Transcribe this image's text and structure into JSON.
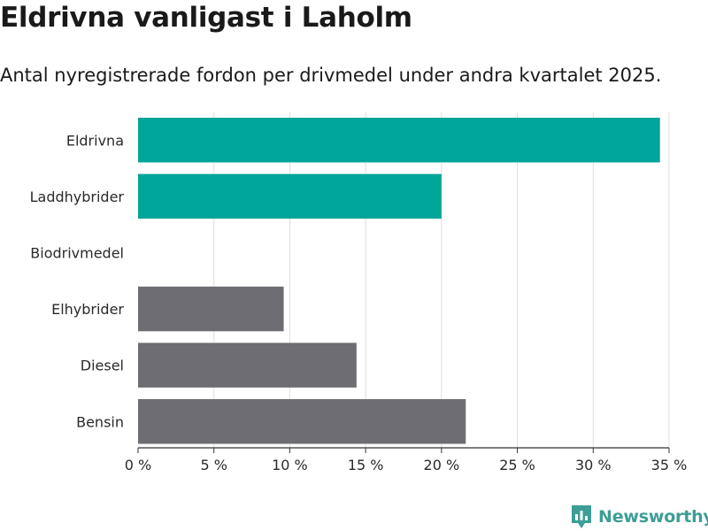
{
  "title": "Eldrivna vanligast i Laholm",
  "subtitle": "Antal nyregistrerade fordon per drivmedel under andra kvartalet 2025.",
  "brand": {
    "name": "Newsworthy",
    "color": "#3d9e96"
  },
  "colors": {
    "highlight": "#00a599",
    "default": "#6e6d73",
    "grid": "#dddddd"
  },
  "chart_data": {
    "type": "bar",
    "orientation": "horizontal",
    "categories": [
      "Eldrivna",
      "Laddhybrider",
      "Biodrivmedel",
      "Elhybrider",
      "Diesel",
      "Bensin"
    ],
    "values": [
      34.4,
      20.0,
      0,
      9.6,
      14.4,
      21.6
    ],
    "highlighted": [
      true,
      true,
      false,
      false,
      false,
      false
    ],
    "xlim": [
      0,
      35
    ],
    "xticks": [
      0,
      5,
      10,
      15,
      20,
      25,
      30,
      35
    ],
    "xtick_labels": [
      "0 %",
      "5 %",
      "10 %",
      "15 %",
      "20 %",
      "25 %",
      "30 %",
      "35 %"
    ],
    "xlabel": "",
    "ylabel": "",
    "grid": true,
    "legend": false
  }
}
